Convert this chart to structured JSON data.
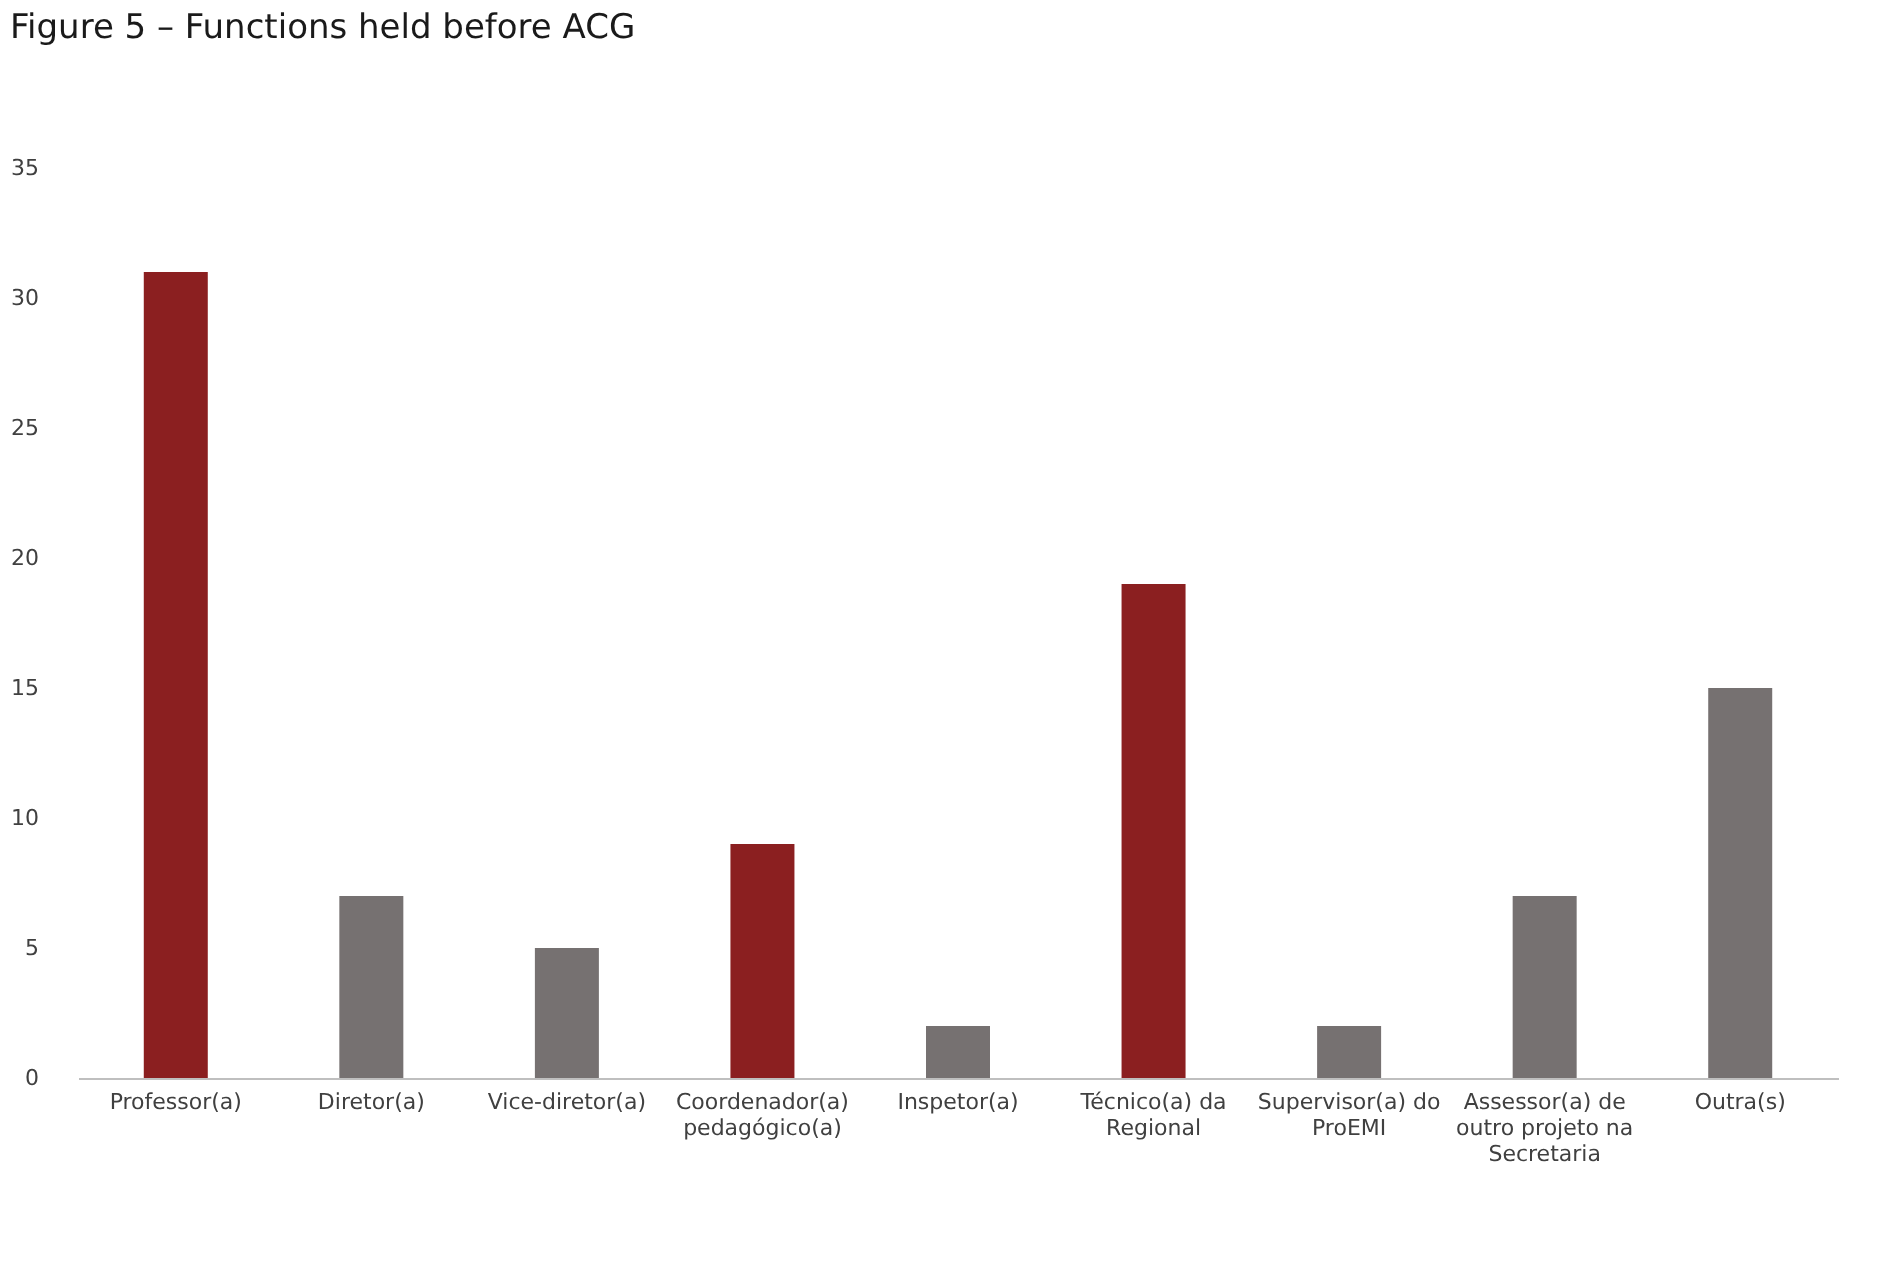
{
  "chart_data": {
    "type": "bar",
    "title": "Figure 5 – Functions held before ACG",
    "categories": [
      "Professor(a)",
      "Diretor(a)",
      "Vice-diretor(a)",
      "Coordenador(a) pedagógico(a)",
      "Inspetor(a)",
      "Técnico(a) da Regional",
      "Supervisor(a) do ProEMI",
      "Assessor(a) de outro projeto na Secretaria",
      "Outra(s)"
    ],
    "values": [
      31,
      7,
      5,
      9,
      2,
      19,
      2,
      7,
      15
    ],
    "colors": [
      "#8b1f20",
      "#767171",
      "#767171",
      "#8b1f20",
      "#767171",
      "#8b1f20",
      "#767171",
      "#767171",
      "#767171"
    ],
    "ylim": [
      0,
      35
    ],
    "yticks": [
      0,
      5,
      10,
      15,
      20,
      25,
      30,
      35
    ],
    "grid": false
  }
}
